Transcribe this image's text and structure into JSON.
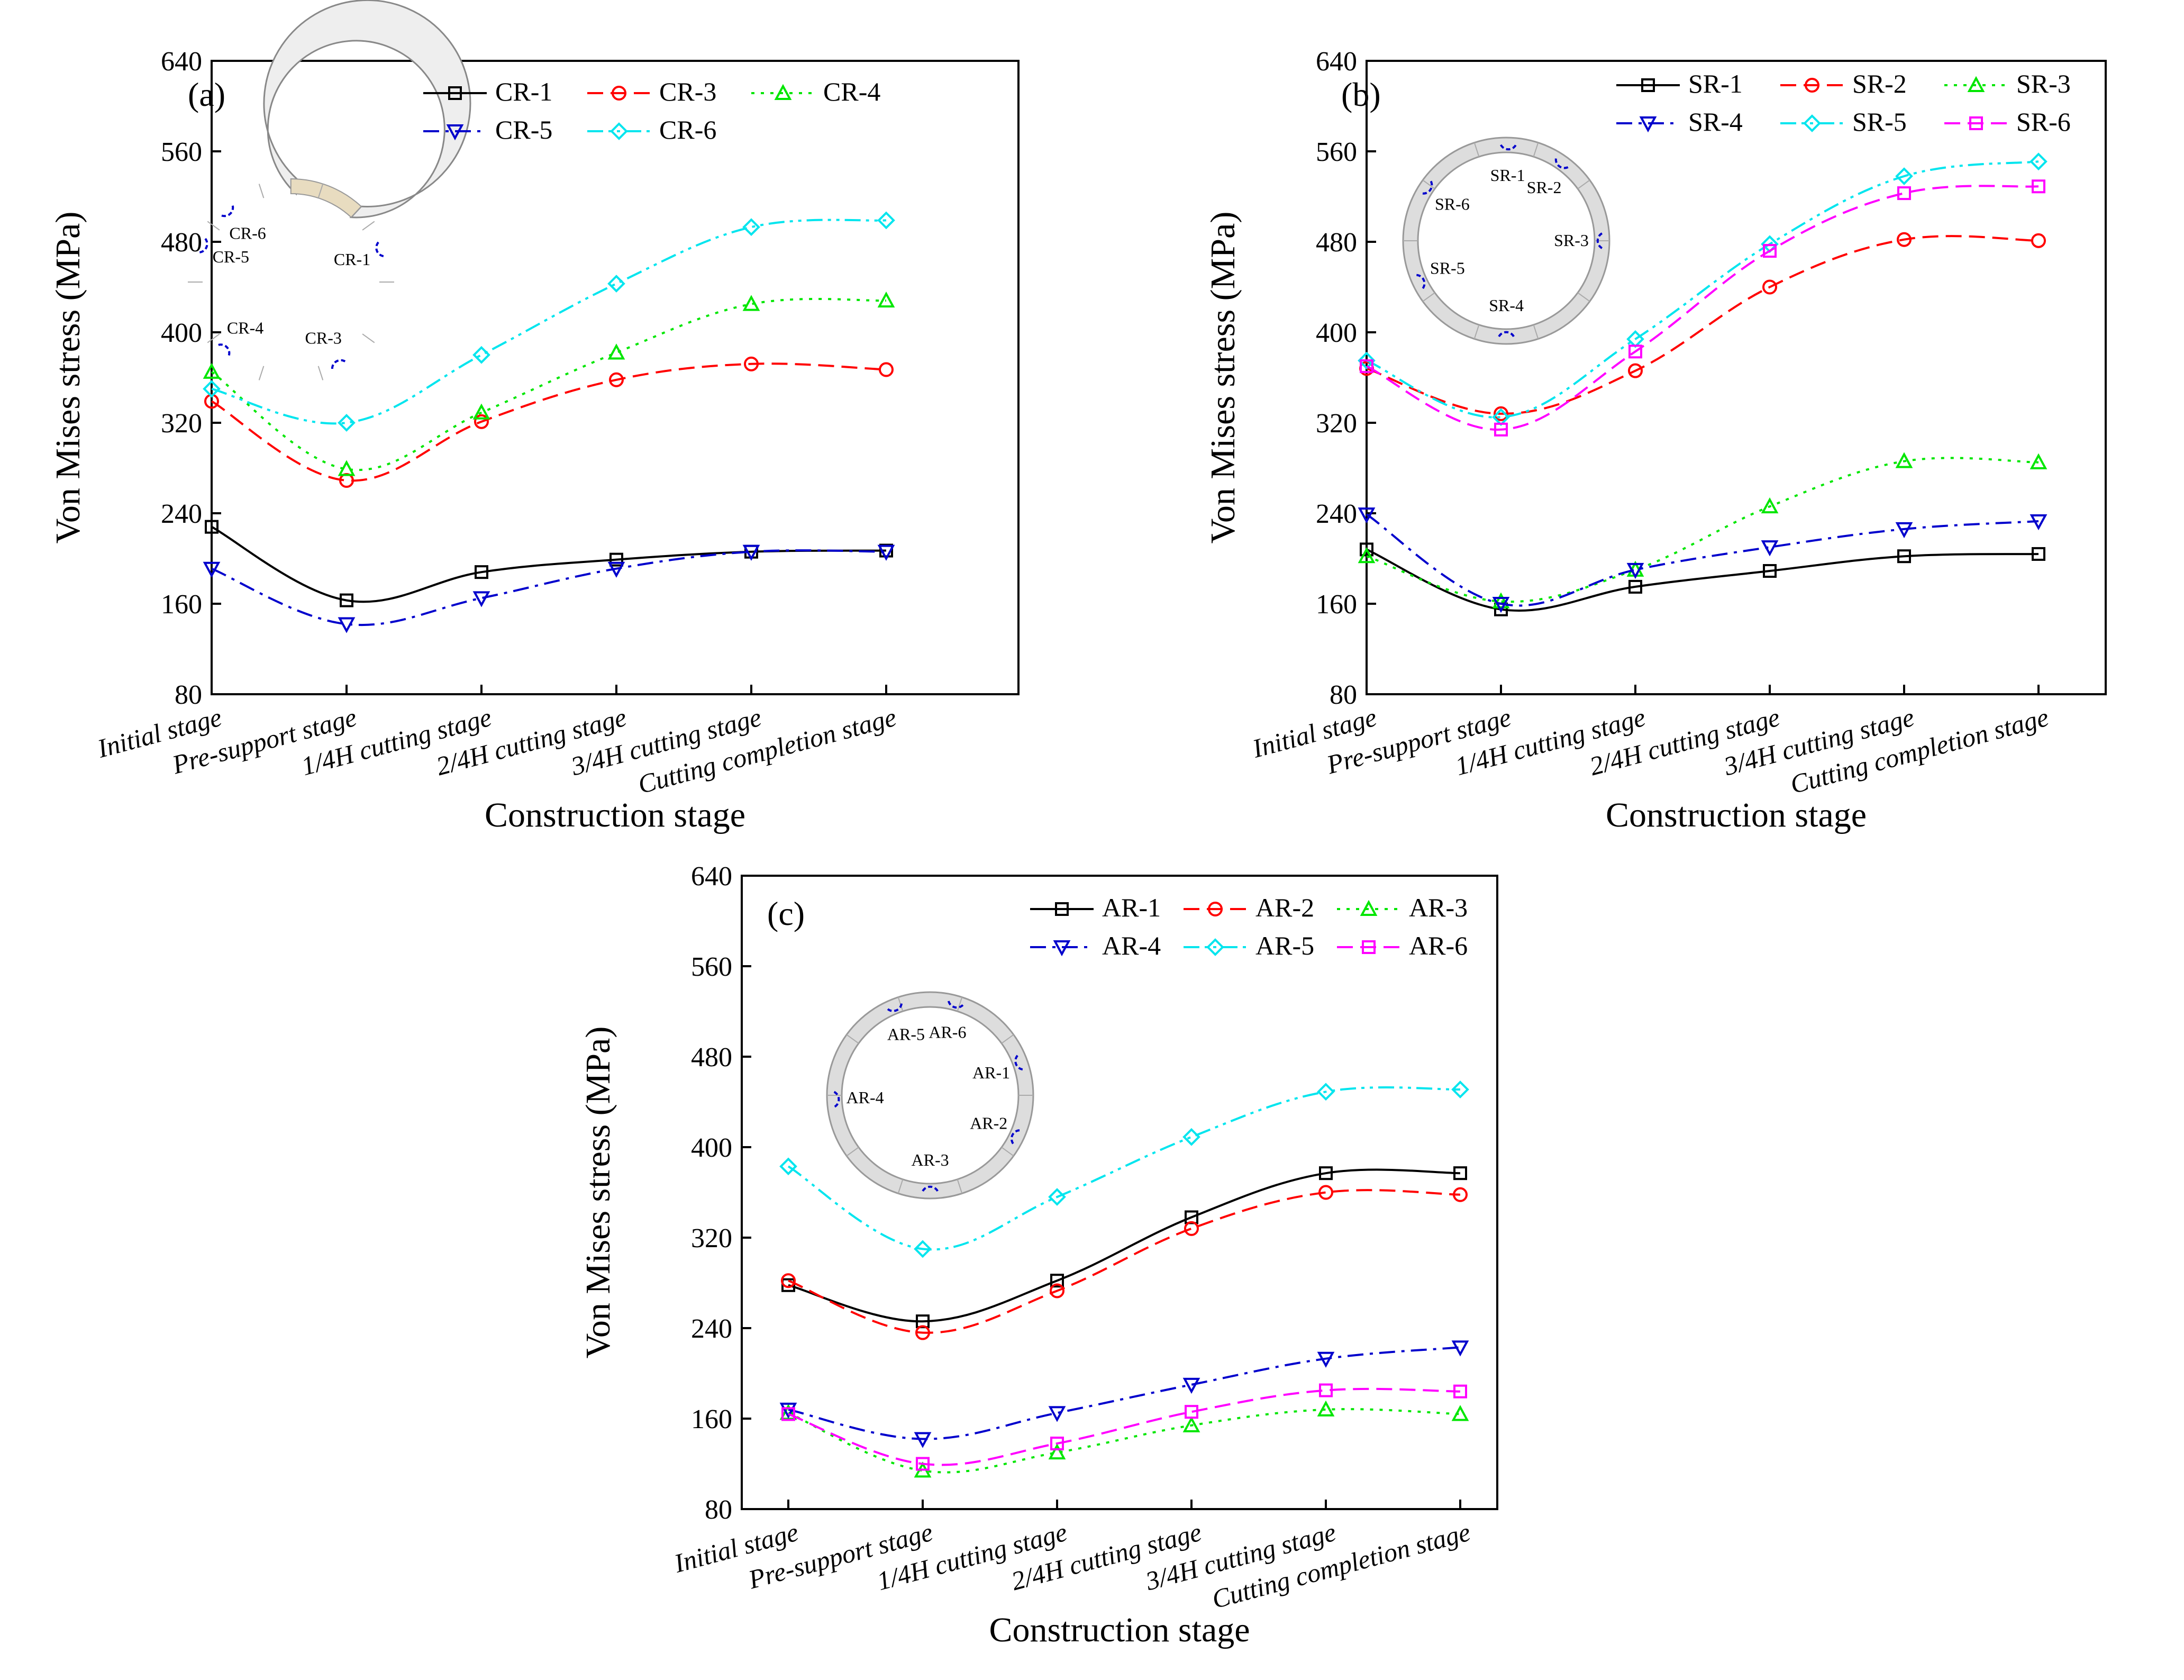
{
  "chart_data": [
    {
      "type": "line",
      "panel_label": "(a)",
      "xlabel": "Construction stage",
      "ylabel": "Von Mises stress (MPa)",
      "ylim": [
        80,
        640
      ],
      "yticks": [
        "80",
        "160",
        "240",
        "320",
        "400",
        "480",
        "560",
        "640"
      ],
      "categories": [
        "Initial stage",
        "Pre-support stage",
        "1/4H cutting stage",
        "2/4H cutting stage",
        "3/4H cutting stage",
        "Cutting completion stage"
      ],
      "legend_position": "top-right",
      "series": [
        {
          "name": "CR-1",
          "color": "#000000",
          "marker": "square",
          "dash": "solid",
          "values": [
            228,
            163,
            188,
            199,
            206,
            207
          ]
        },
        {
          "name": "CR-3",
          "color": "#ff0000",
          "marker": "circle",
          "dash": "dash",
          "values": [
            339,
            269,
            321,
            358,
            372,
            367
          ]
        },
        {
          "name": "CR-4",
          "color": "#00e600",
          "marker": "triangle-up",
          "dash": "dot",
          "values": [
            365,
            279,
            329,
            382,
            425,
            428
          ]
        },
        {
          "name": "CR-5",
          "color": "#0000cc",
          "marker": "triangle-down",
          "dash": "dashdot",
          "values": [
            191,
            142,
            165,
            191,
            206,
            206
          ]
        },
        {
          "name": "CR-6",
          "color": "#00e5ee",
          "marker": "diamond",
          "dash": "dashdotdot",
          "values": [
            350,
            320,
            380,
            443,
            493,
            499
          ]
        }
      ],
      "inset": {
        "shape": "open-ring",
        "labels": [
          "CR-1",
          "CR-6",
          "CR-5",
          "CR-4",
          "CR-3"
        ]
      }
    },
    {
      "type": "line",
      "panel_label": "(b)",
      "xlabel": "Construction stage",
      "ylabel": "Von Mises stress (MPa)",
      "ylim": [
        80,
        640
      ],
      "yticks": [
        "80",
        "160",
        "240",
        "320",
        "400",
        "480",
        "560",
        "640"
      ],
      "categories": [
        "Initial stage",
        "Pre-support stage",
        "1/4H cutting stage",
        "2/4H cutting stage",
        "3/4H cutting stage",
        "Cutting completion stage"
      ],
      "legend_position": "top-right",
      "series": [
        {
          "name": "SR-1",
          "color": "#000000",
          "marker": "square",
          "dash": "solid",
          "values": [
            208,
            155,
            175,
            189,
            202,
            204
          ]
        },
        {
          "name": "SR-2",
          "color": "#ff0000",
          "marker": "circle",
          "dash": "dash",
          "values": [
            368,
            328,
            366,
            440,
            482,
            481
          ]
        },
        {
          "name": "SR-3",
          "color": "#00e600",
          "marker": "triangle-up",
          "dash": "dot",
          "values": [
            202,
            162,
            190,
            246,
            286,
            285
          ]
        },
        {
          "name": "SR-4",
          "color": "#0000cc",
          "marker": "triangle-down",
          "dash": "dashdot",
          "values": [
            239,
            160,
            190,
            210,
            226,
            233
          ]
        },
        {
          "name": "SR-5",
          "color": "#00e5ee",
          "marker": "diamond",
          "dash": "dashdotdot",
          "values": [
            375,
            325,
            394,
            478,
            538,
            551
          ]
        },
        {
          "name": "SR-6",
          "color": "#ff00ff",
          "marker": "square",
          "dash": "dash",
          "values": [
            370,
            314,
            383,
            472,
            523,
            529
          ]
        }
      ],
      "inset": {
        "shape": "ring",
        "labels": [
          "SR-1",
          "SR-2",
          "SR-6",
          "SR-3",
          "SR-5",
          "SR-4"
        ]
      }
    },
    {
      "type": "line",
      "panel_label": "(c)",
      "xlabel": "Construction stage",
      "ylabel": "Von Mises stress (MPa)",
      "ylim": [
        80,
        640
      ],
      "yticks": [
        "80",
        "160",
        "240",
        "320",
        "400",
        "480",
        "560",
        "640"
      ],
      "categories": [
        "Initial stage",
        "Pre-support stage",
        "1/4H cutting stage",
        "2/4H cutting stage",
        "3/4H cutting stage",
        "Cutting completion stage"
      ],
      "legend_position": "top-right",
      "series": [
        {
          "name": "AR-1",
          "color": "#000000",
          "marker": "square",
          "dash": "solid",
          "values": [
            278,
            246,
            282,
            338,
            377,
            377
          ]
        },
        {
          "name": "AR-2",
          "color": "#ff0000",
          "marker": "circle",
          "dash": "dash",
          "values": [
            282,
            236,
            273,
            328,
            360,
            358
          ]
        },
        {
          "name": "AR-3",
          "color": "#00e600",
          "marker": "triangle-up",
          "dash": "dot",
          "values": [
            165,
            114,
            130,
            154,
            168,
            164
          ]
        },
        {
          "name": "AR-4",
          "color": "#0000cc",
          "marker": "triangle-down",
          "dash": "dashdot",
          "values": [
            168,
            142,
            165,
            190,
            213,
            223
          ]
        },
        {
          "name": "AR-5",
          "color": "#00e5ee",
          "marker": "diamond",
          "dash": "dashdotdot",
          "values": [
            383,
            310,
            356,
            409,
            449,
            451
          ]
        },
        {
          "name": "AR-6",
          "color": "#ff00ff",
          "marker": "square",
          "dash": "dash",
          "values": [
            164,
            120,
            138,
            166,
            185,
            184
          ]
        }
      ],
      "inset": {
        "shape": "ring",
        "labels": [
          "AR-6",
          "AR-5",
          "AR-1",
          "AR-4",
          "AR-2",
          "AR-3"
        ]
      }
    }
  ]
}
